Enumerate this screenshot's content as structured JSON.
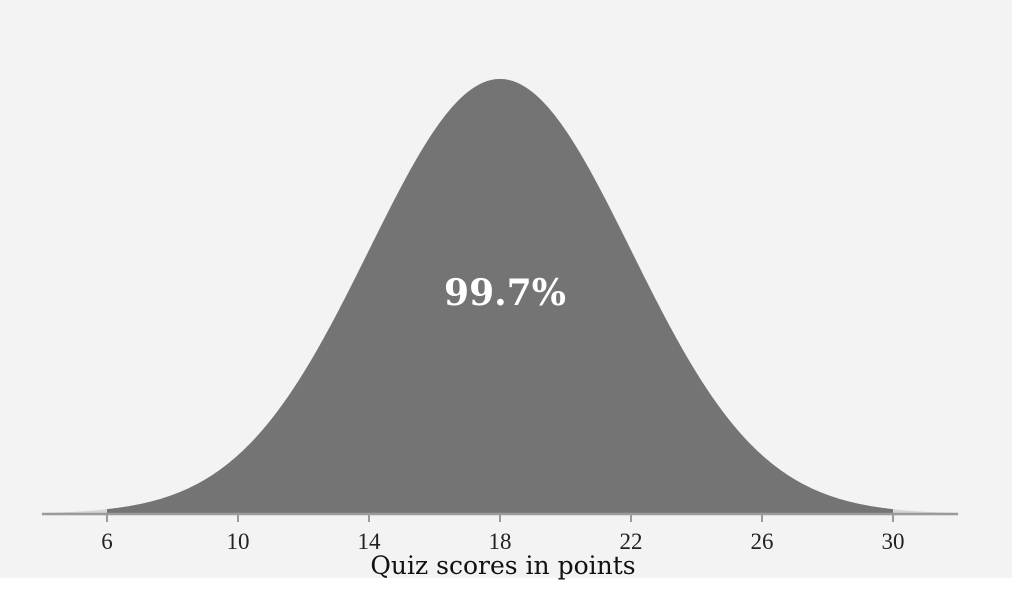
{
  "chart_data": {
    "type": "area",
    "subtype": "normal-distribution",
    "title": "",
    "xlabel": "Quiz scores in points",
    "ylabel": "",
    "mean": 18,
    "std_dev": 4,
    "shaded_range": [
      6,
      30
    ],
    "xlim": [
      4,
      32
    ],
    "x_ticks": [
      6,
      10,
      14,
      18,
      22,
      26,
      30
    ],
    "x_tick_labels": [
      "6",
      "10",
      "14",
      "18",
      "22",
      "26",
      "30"
    ],
    "annotation": "99.7%",
    "grid": false,
    "legend": "none",
    "colors": {
      "plot_background": "#f3f3f3",
      "curve_fill": "#747474",
      "tail_fill": "#d6d6d6",
      "axis": "#9a9a9a",
      "annotation_text": "#ffffff"
    }
  }
}
